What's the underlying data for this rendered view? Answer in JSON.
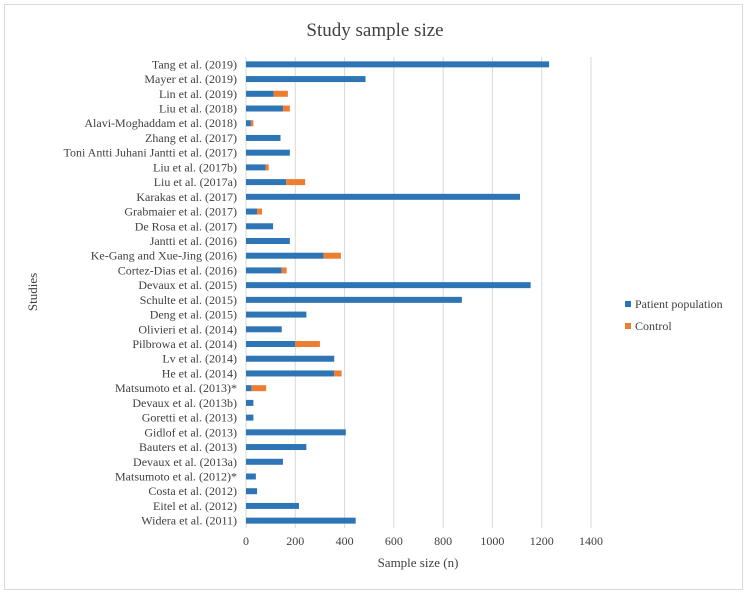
{
  "chart_data": {
    "type": "bar",
    "orientation": "horizontal",
    "stacked": true,
    "title": "Study sample size",
    "xlabel": "Sample size (n)",
    "ylabel": "Studies",
    "xlim": [
      0,
      1400
    ],
    "xticks": [
      0,
      200,
      400,
      600,
      800,
      1000,
      1200,
      1400
    ],
    "grid": "vertical",
    "legend_position": "right",
    "categories": [
      "Tang et al. (2019)",
      "Mayer et al. (2019)",
      "Lin et al. (2019)",
      "Liu et al. (2018)",
      "Alavi-Moghaddam et al. (2018)",
      "Zhang et al. (2017)",
      "Toni Antti Juhani Jantti et al. (2017)",
      "Liu et al. (2017b)",
      "Liu et al. (2017a)",
      "Karakas et al. (2017)",
      "Grabmaier et al. (2017)",
      "De Rosa et al. (2017)",
      "Jantti et al. (2016)",
      "Ke-Gang and Xue-Jing (2016)",
      "Cortez-Dias et al. (2016)",
      "Devaux et al. (2015)",
      "Schulte et al. (2015)",
      "Deng et al. (2015)",
      "Olivieri et al. (2014)",
      "Pilbrowa et al. (2014)",
      "Lv et al. (2014)",
      "He et al. (2014)",
      "Matsumoto et al. (2013)*",
      "Devaux et al. (2013b)",
      "Goretti et al. (2013)",
      "Gidlof et al. (2013)",
      "Bauters et al. (2013)",
      "Devaux et al. (2013a)",
      "Matsumoto et al. (2012)*",
      "Costa et al. (2012)",
      "Eitel et al. (2012)",
      "Widera et al. (2011)"
    ],
    "series": [
      {
        "name": "Patient population",
        "color": "#2e75b6",
        "values": [
          1230,
          485,
          112,
          150,
          20,
          140,
          178,
          80,
          163,
          1112,
          45,
          110,
          178,
          315,
          145,
          1155,
          876,
          245,
          145,
          200,
          358,
          358,
          22,
          30,
          30,
          405,
          245,
          150,
          40,
          45,
          215,
          445
        ]
      },
      {
        "name": "Control",
        "color": "#ed7d31",
        "values": [
          0,
          0,
          58,
          28,
          10,
          0,
          0,
          12,
          77,
          0,
          20,
          0,
          0,
          70,
          20,
          0,
          0,
          0,
          0,
          100,
          0,
          30,
          60,
          0,
          0,
          0,
          0,
          0,
          0,
          0,
          0,
          0
        ]
      }
    ]
  }
}
